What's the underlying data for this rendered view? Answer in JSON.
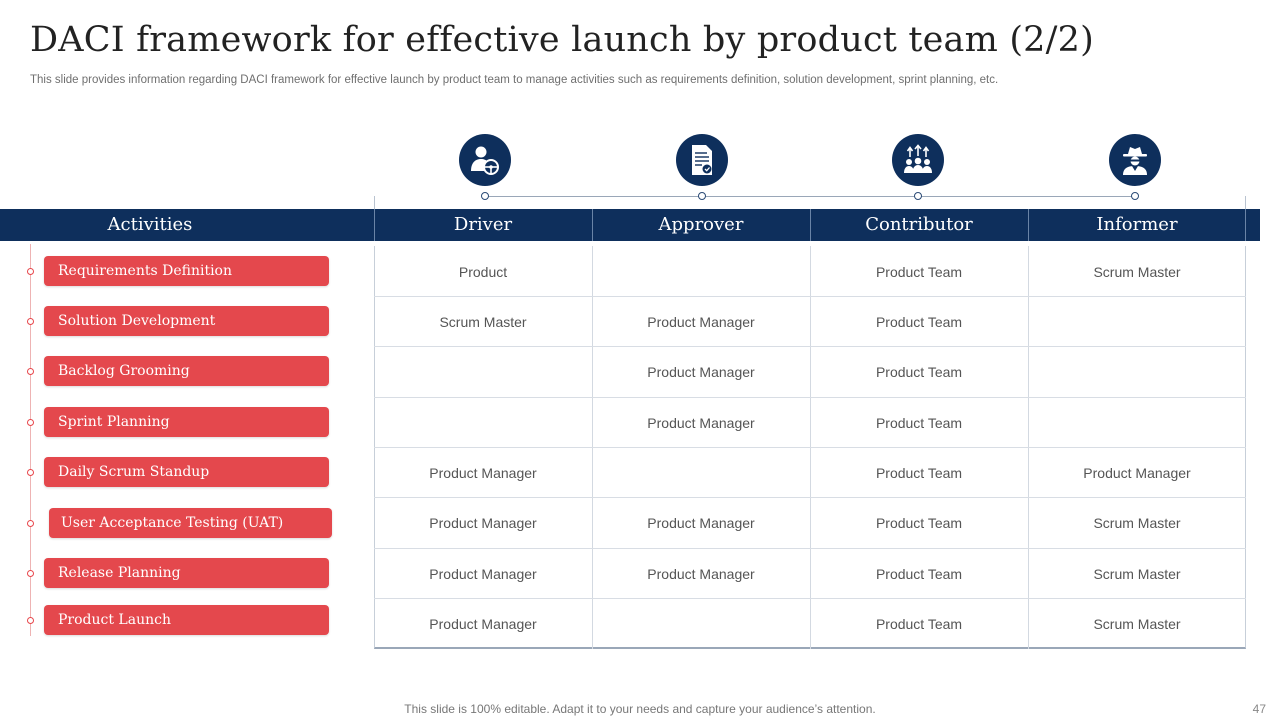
{
  "title": "DACI framework for effective launch by product team (2/2)",
  "subtitle": "This slide provides information regarding DACI framework for effective launch by product team to manage activities such as requirements definition, solution development, sprint planning, etc.",
  "header": {
    "activities": "Activities",
    "columns": [
      "Driver",
      "Approver",
      "Contributor",
      "Informer"
    ]
  },
  "icons": [
    "driver-person-steering-wheel-icon",
    "approver-document-check-icon",
    "contributor-team-arrows-icon",
    "informer-detective-icon"
  ],
  "rows": [
    {
      "activity": "Requirements Definition",
      "driver": "Product",
      "approver": "",
      "contributor": "Product Team",
      "informer": "Scrum Master"
    },
    {
      "activity": "Solution Development",
      "driver": "Scrum Master",
      "approver": "Product Manager",
      "contributor": "Product Team",
      "informer": ""
    },
    {
      "activity": "Backlog Grooming",
      "driver": "",
      "approver": "Product Manager",
      "contributor": "Product Team",
      "informer": ""
    },
    {
      "activity": "Sprint Planning",
      "driver": "",
      "approver": "Product Manager",
      "contributor": "Product Team",
      "informer": ""
    },
    {
      "activity": "Daily Scrum Standup",
      "driver": "Product Manager",
      "approver": "",
      "contributor": "Product Team",
      "informer": "Product Manager"
    },
    {
      "activity": "User Acceptance Testing (UAT)",
      "driver": "Product Manager",
      "approver": "Product Manager",
      "contributor": "Product Team",
      "informer": "Scrum Master"
    },
    {
      "activity": "Release Planning",
      "driver": "Product Manager",
      "approver": "Product Manager",
      "contributor": "Product Team",
      "informer": "Scrum Master"
    },
    {
      "activity": "Product Launch",
      "driver": "Product Manager",
      "approver": "",
      "contributor": "Product Team",
      "informer": "Scrum Master"
    }
  ],
  "footer": "This slide is 100% editable. Adapt it to your needs and capture your audience’s attention.",
  "page_number": "47",
  "colors": {
    "navy": "#0e2f5c",
    "red": "#e4484d"
  }
}
